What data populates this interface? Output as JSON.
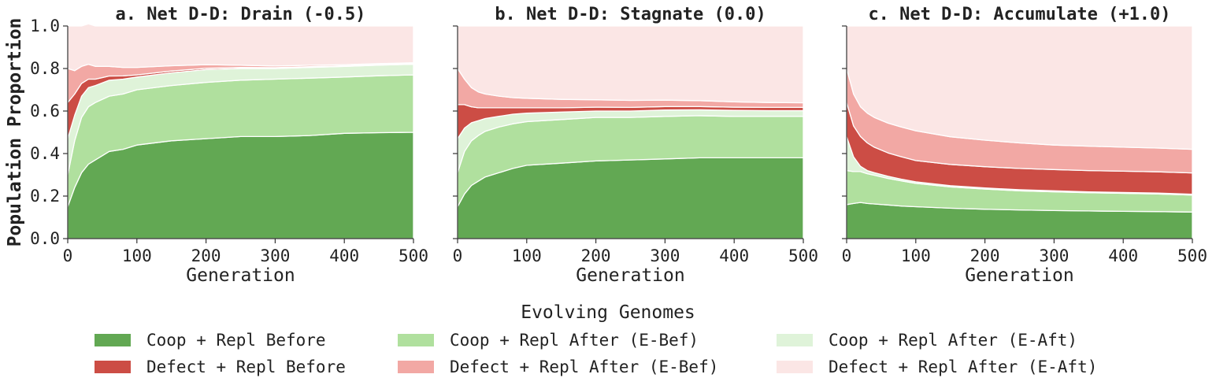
{
  "chart_data": [
    {
      "type": "area",
      "stacked": true,
      "title": "a. Net D-D: Drain (-0.5)",
      "xlabel": "Generation",
      "ylabel": "Population Proportion",
      "xlim": [
        0,
        500
      ],
      "ylim": [
        0,
        1
      ],
      "xticks": [
        "0",
        "100",
        "200",
        "300",
        "400",
        "500"
      ],
      "yticks": [
        "0.0",
        "0.2",
        "0.4",
        "0.6",
        "0.8",
        "1.0"
      ],
      "x": [
        0,
        10,
        20,
        30,
        40,
        60,
        80,
        100,
        150,
        200,
        250,
        300,
        350,
        400,
        450,
        500
      ],
      "series": [
        {
          "name": "Coop + Repl Before",
          "color": "#62a853",
          "values": [
            0.15,
            0.24,
            0.31,
            0.35,
            0.37,
            0.41,
            0.42,
            0.44,
            0.46,
            0.47,
            0.48,
            0.48,
            0.485,
            0.495,
            0.498,
            0.5
          ]
        },
        {
          "name": "Coop + Repl After (E-Bef)",
          "color": "#b0e09e",
          "values": [
            0.15,
            0.22,
            0.26,
            0.27,
            0.27,
            0.26,
            0.26,
            0.26,
            0.26,
            0.265,
            0.265,
            0.27,
            0.27,
            0.265,
            0.268,
            0.27
          ]
        },
        {
          "name": "Coop + Repl After (E-Aft)",
          "color": "#dff3d9",
          "values": [
            0.17,
            0.12,
            0.1,
            0.09,
            0.08,
            0.075,
            0.07,
            0.06,
            0.06,
            0.06,
            0.055,
            0.05,
            0.05,
            0.05,
            0.05,
            0.05
          ]
        },
        {
          "name": "Defect + Repl Before",
          "color": "#cc4d45",
          "values": [
            0.17,
            0.1,
            0.06,
            0.04,
            0.03,
            0.02,
            0.015,
            0.01,
            0.008,
            0.006,
            0.005,
            0.004,
            0.004,
            0.003,
            0.003,
            0.003
          ]
        },
        {
          "name": "Defect + Repl After (E-Bef)",
          "color": "#f2a8a4",
          "values": [
            0.16,
            0.11,
            0.08,
            0.07,
            0.06,
            0.045,
            0.04,
            0.035,
            0.025,
            0.017,
            0.01,
            0.008,
            0.006,
            0.005,
            0.004,
            0.004
          ]
        },
        {
          "name": "Defect + Repl After (E-Aft)",
          "color": "#fbe6e5",
          "values": [
            0.2,
            0.21,
            0.19,
            0.19,
            0.19,
            0.19,
            0.195,
            0.195,
            0.187,
            0.182,
            0.185,
            0.188,
            0.185,
            0.182,
            0.177,
            0.173
          ]
        }
      ]
    },
    {
      "type": "area",
      "stacked": true,
      "title": "b. Net D-D: Stagnate (0.0)",
      "xlabel": "Generation",
      "ylabel": "",
      "xlim": [
        0,
        500
      ],
      "ylim": [
        0,
        1
      ],
      "xticks": [
        "0",
        "100",
        "200",
        "300",
        "400",
        "500"
      ],
      "yticks": [],
      "x": [
        0,
        10,
        20,
        30,
        40,
        60,
        80,
        100,
        150,
        200,
        250,
        300,
        350,
        400,
        450,
        500
      ],
      "series": [
        {
          "name": "Coop + Repl Before",
          "color": "#62a853",
          "values": [
            0.15,
            0.21,
            0.25,
            0.27,
            0.29,
            0.31,
            0.33,
            0.345,
            0.355,
            0.365,
            0.37,
            0.375,
            0.38,
            0.38,
            0.38,
            0.38
          ]
        },
        {
          "name": "Coop + Repl After (E-Bef)",
          "color": "#b0e09e",
          "values": [
            0.16,
            0.2,
            0.21,
            0.215,
            0.215,
            0.215,
            0.21,
            0.205,
            0.205,
            0.205,
            0.2,
            0.2,
            0.198,
            0.195,
            0.195,
            0.195
          ]
        },
        {
          "name": "Coop + Repl After (E-Aft)",
          "color": "#dff3d9",
          "values": [
            0.16,
            0.11,
            0.085,
            0.07,
            0.06,
            0.05,
            0.045,
            0.04,
            0.035,
            0.03,
            0.03,
            0.03,
            0.028,
            0.028,
            0.027,
            0.027
          ]
        },
        {
          "name": "Defect + Repl Before",
          "color": "#cc4d45",
          "values": [
            0.16,
            0.11,
            0.075,
            0.06,
            0.05,
            0.04,
            0.03,
            0.025,
            0.02,
            0.018,
            0.017,
            0.016,
            0.015,
            0.015,
            0.015,
            0.015
          ]
        },
        {
          "name": "Defect + Repl After (E-Bef)",
          "color": "#f2a8a4",
          "values": [
            0.17,
            0.12,
            0.09,
            0.075,
            0.065,
            0.055,
            0.048,
            0.045,
            0.04,
            0.035,
            0.033,
            0.03,
            0.028,
            0.025,
            0.023,
            0.022
          ]
        },
        {
          "name": "Defect + Repl After (E-Aft)",
          "color": "#fbe6e5",
          "values": [
            0.2,
            0.25,
            0.29,
            0.31,
            0.32,
            0.33,
            0.337,
            0.34,
            0.345,
            0.347,
            0.35,
            0.349,
            0.351,
            0.357,
            0.36,
            0.361
          ]
        }
      ]
    },
    {
      "type": "area",
      "stacked": true,
      "title": "c. Net D-D: Accumulate (+1.0)",
      "xlabel": "Generation",
      "ylabel": "",
      "xlim": [
        0,
        500
      ],
      "ylim": [
        0,
        1
      ],
      "xticks": [
        "0",
        "100",
        "200",
        "300",
        "400",
        "500"
      ],
      "yticks": [],
      "x": [
        0,
        10,
        20,
        30,
        40,
        60,
        80,
        100,
        150,
        200,
        250,
        300,
        350,
        400,
        450,
        500
      ],
      "series": [
        {
          "name": "Coop + Repl Before",
          "color": "#62a853",
          "values": [
            0.16,
            0.165,
            0.17,
            0.165,
            0.163,
            0.158,
            0.153,
            0.15,
            0.143,
            0.138,
            0.135,
            0.132,
            0.13,
            0.128,
            0.127,
            0.125
          ]
        },
        {
          "name": "Coop + Repl After (E-Bef)",
          "color": "#b0e09e",
          "values": [
            0.16,
            0.15,
            0.145,
            0.14,
            0.135,
            0.125,
            0.118,
            0.11,
            0.1,
            0.095,
            0.09,
            0.088,
            0.086,
            0.085,
            0.083,
            0.08
          ]
        },
        {
          "name": "Coop + Repl After (E-Aft)",
          "color": "#dff3d9",
          "values": [
            0.16,
            0.07,
            0.025,
            0.015,
            0.012,
            0.01,
            0.008,
            0.007,
            0.006,
            0.005,
            0.005,
            0.005,
            0.004,
            0.004,
            0.004,
            0.004
          ]
        },
        {
          "name": "Defect + Repl Before",
          "color": "#cc4d45",
          "values": [
            0.16,
            0.145,
            0.14,
            0.13,
            0.12,
            0.11,
            0.105,
            0.1,
            0.1,
            0.1,
            0.1,
            0.1,
            0.1,
            0.1,
            0.1,
            0.1
          ]
        },
        {
          "name": "Defect + Repl After (E-Bef)",
          "color": "#f2a8a4",
          "values": [
            0.16,
            0.15,
            0.14,
            0.14,
            0.14,
            0.14,
            0.14,
            0.14,
            0.13,
            0.125,
            0.12,
            0.115,
            0.115,
            0.113,
            0.112,
            0.111
          ]
        },
        {
          "name": "Defect + Repl After (E-Aft)",
          "color": "#fbe6e5",
          "values": [
            0.2,
            0.32,
            0.38,
            0.41,
            0.43,
            0.457,
            0.476,
            0.493,
            0.521,
            0.537,
            0.55,
            0.56,
            0.565,
            0.57,
            0.574,
            0.58
          ]
        }
      ]
    }
  ],
  "legend": {
    "title": "Evolving Genomes",
    "items": [
      {
        "label": "Coop + Repl Before",
        "color": "#62a853"
      },
      {
        "label": "Defect + Repl Before",
        "color": "#cc4d45"
      },
      {
        "label": "Coop + Repl After (E-Bef)",
        "color": "#b0e09e"
      },
      {
        "label": "Defect + Repl After (E-Bef)",
        "color": "#f2a8a4"
      },
      {
        "label": "Coop + Repl After (E-Aft)",
        "color": "#dff3d9"
      },
      {
        "label": "Defect + Repl After (E-Aft)",
        "color": "#fbe6e5"
      }
    ]
  }
}
